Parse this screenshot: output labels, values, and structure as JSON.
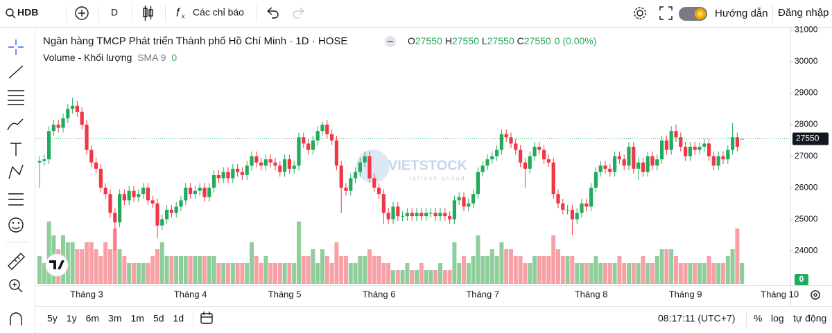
{
  "toolbar": {
    "symbol": "HDB",
    "interval": "D",
    "indicators": "Các chỉ báo",
    "guide": "Hướng dẫn",
    "login": "Đăng nhập"
  },
  "bottom_bar": {
    "ranges": [
      "5y",
      "1y",
      "6m",
      "3m",
      "1m",
      "5d",
      "1d"
    ],
    "time": "08:17:11 (UTC+7)",
    "percent": "%",
    "log": "log",
    "auto": "tự động"
  },
  "watermark": {
    "brand": "VIETSTOCK",
    "tagline": "refresh ahead"
  },
  "chart_data": {
    "type": "candlestick",
    "title": "Ngân hàng TMCP Phát triển Thành phố Hồ Chí Minh · 1D · HOSE",
    "ohlc_prefixes": [
      "O",
      "H",
      "L",
      "C"
    ],
    "change": "0 (0.00%)",
    "volume_legend": {
      "name": "Volume - Khối lượng",
      "sma": "SMA 9",
      "value": 0
    },
    "up_color": "#22ab5c",
    "down_color": "#f23645",
    "volume_up_color": "#8fce9b",
    "volume_down_color": "#f7a1a6",
    "ylim": [
      22950,
      31120
    ],
    "yticks": [
      24000,
      25000,
      26000,
      27000,
      28000,
      29000,
      30000,
      31000
    ],
    "grid": false,
    "volume_ylim": [
      0,
      10
    ],
    "future_ticks": [
      "Tháng 10"
    ],
    "categories": [
      null,
      null,
      null,
      null,
      null,
      null,
      null,
      null,
      null,
      null,
      "Tháng 3",
      null,
      null,
      null,
      null,
      null,
      null,
      null,
      null,
      null,
      null,
      null,
      null,
      null,
      null,
      null,
      null,
      null,
      null,
      null,
      null,
      null,
      "Tháng 4",
      null,
      null,
      null,
      null,
      null,
      null,
      null,
      null,
      null,
      null,
      null,
      null,
      null,
      null,
      null,
      null,
      null,
      null,
      null,
      "Tháng 5",
      null,
      null,
      null,
      null,
      null,
      null,
      null,
      null,
      null,
      null,
      null,
      null,
      null,
      null,
      null,
      null,
      null,
      null,
      null,
      "Tháng 6",
      null,
      null,
      null,
      null,
      null,
      null,
      null,
      null,
      null,
      null,
      null,
      null,
      null,
      null,
      null,
      null,
      null,
      null,
      null,
      null,
      null,
      "Tháng 7",
      null,
      null,
      null,
      null,
      null,
      null,
      null,
      null,
      null,
      null,
      null,
      null,
      null,
      null,
      null,
      null,
      null,
      null,
      null,
      null,
      null,
      null,
      "Tháng 8",
      null,
      null,
      null,
      null,
      null,
      null,
      null,
      null,
      null,
      null,
      null,
      null,
      null,
      null,
      null,
      null,
      null,
      null,
      null,
      "Tháng 9",
      null,
      null,
      null,
      null,
      null,
      null,
      null,
      null,
      null,
      null,
      null,
      null
    ],
    "open": [
      26800,
      26850,
      26900,
      27800,
      28000,
      27900,
      28200,
      28500,
      28600,
      28400,
      28000,
      27200,
      26800,
      26600,
      26000,
      25800,
      25200,
      24900,
      25800,
      25600,
      25900,
      25700,
      25800,
      26000,
      25600,
      25500,
      24800,
      25000,
      25300,
      25200,
      25400,
      25600,
      26000,
      25800,
      25900,
      26000,
      25700,
      26000,
      26400,
      26300,
      26500,
      26300,
      26600,
      26500,
      26400,
      26700,
      27000,
      26800,
      26700,
      26900,
      26800,
      26700,
      26500,
      26900,
      26600,
      26700,
      27600,
      27400,
      27200,
      27500,
      27800,
      28000,
      27700,
      27500,
      26700,
      26000,
      25900,
      26300,
      26500,
      26800,
      27000,
      26300,
      26000,
      25800,
      25200,
      25000,
      25400,
      25100,
      25100,
      25200,
      25100,
      25200,
      25100,
      25200,
      25200,
      25100,
      25200,
      25100,
      25000,
      25600,
      25700,
      25400,
      25500,
      25800,
      26500,
      26700,
      26900,
      27000,
      27200,
      27700,
      27600,
      27400,
      27200,
      26800,
      26600,
      27000,
      27300,
      27200,
      26900,
      26800,
      25800,
      25500,
      25300,
      25300,
      25000,
      25200,
      25500,
      25400,
      26000,
      26500,
      26700,
      26600,
      26500,
      27000,
      26900,
      26700,
      27300,
      26600,
      26800,
      26500,
      27000,
      26700,
      26900,
      27500,
      27200,
      27800,
      27600,
      27300,
      27000,
      27300,
      27200,
      27300,
      27400,
      27000,
      26700,
      27000,
      26900,
      27200,
      27600,
      27550
    ],
    "high": [
      27000,
      27050,
      27950,
      28150,
      28150,
      28350,
      28650,
      28850,
      28750,
      28550,
      28150,
      27350,
      26950,
      26750,
      26150,
      25950,
      25350,
      25950,
      25950,
      26050,
      26050,
      25950,
      26150,
      26150,
      25750,
      25650,
      25150,
      25450,
      25450,
      25550,
      25750,
      26150,
      26150,
      26050,
      26150,
      26150,
      26150,
      26550,
      26550,
      26650,
      26650,
      26750,
      26750,
      26650,
      26850,
      27150,
      27150,
      26950,
      27050,
      27050,
      26950,
      26850,
      27050,
      27050,
      26850,
      27750,
      27750,
      27550,
      27650,
      27950,
      28100,
      28150,
      27850,
      27650,
      26850,
      26150,
      26450,
      26650,
      26950,
      27150,
      27150,
      26450,
      26150,
      25950,
      25350,
      25550,
      25550,
      25250,
      25350,
      25350,
      25350,
      25350,
      25350,
      25350,
      25350,
      25350,
      25350,
      25250,
      25750,
      25850,
      25850,
      25650,
      25950,
      26650,
      26850,
      27050,
      27150,
      27350,
      27850,
      27850,
      27750,
      27550,
      27350,
      26950,
      27150,
      27450,
      27450,
      27350,
      27050,
      26950,
      25950,
      25650,
      25450,
      25450,
      25350,
      25650,
      25650,
      26150,
      26650,
      26850,
      26850,
      26750,
      27150,
      27150,
      27050,
      27450,
      27450,
      26950,
      26950,
      27150,
      27150,
      27050,
      27650,
      27650,
      27950,
      28000,
      27750,
      27450,
      27450,
      27450,
      27450,
      27550,
      27550,
      27150,
      27150,
      27150,
      27350,
      28050,
      27750,
      27550
    ],
    "low": [
      26000,
      26700,
      26750,
      27650,
      27750,
      27750,
      28050,
      28350,
      28250,
      27850,
      27050,
      26650,
      26450,
      25850,
      25650,
      25050,
      24000,
      24750,
      25450,
      25450,
      25550,
      25550,
      25650,
      25450,
      25350,
      24400,
      24650,
      24850,
      25050,
      25050,
      25250,
      25450,
      25650,
      25650,
      25750,
      25550,
      25550,
      25850,
      26150,
      26150,
      26150,
      26150,
      26350,
      26250,
      26250,
      26550,
      26650,
      26550,
      26550,
      26650,
      26550,
      26350,
      26350,
      26450,
      26450,
      26550,
      27250,
      27050,
      27050,
      27350,
      27650,
      27550,
      27350,
      26550,
      25200,
      25750,
      25750,
      26150,
      26350,
      26650,
      26150,
      25850,
      25650,
      24850,
      24850,
      24850,
      24950,
      24950,
      24950,
      24950,
      24950,
      24950,
      24950,
      25050,
      24950,
      24950,
      24950,
      24850,
      24850,
      25450,
      25250,
      25250,
      25350,
      25650,
      26350,
      26550,
      26750,
      26850,
      27050,
      27450,
      27250,
      27050,
      26650,
      26000,
      26450,
      26850,
      27050,
      26750,
      26650,
      25650,
      25350,
      25150,
      25150,
      24500,
      24850,
      25050,
      25250,
      25250,
      25850,
      26350,
      26450,
      26350,
      26350,
      26750,
      26550,
      26550,
      26450,
      26250,
      26350,
      26350,
      26550,
      26550,
      26750,
      27050,
      27050,
      27450,
      27150,
      26850,
      26850,
      27050,
      27050,
      27150,
      26850,
      26550,
      26550,
      26750,
      26750,
      27050,
      27150,
      27550
    ],
    "close": [
      26850,
      26900,
      27800,
      28000,
      27900,
      28200,
      28500,
      28600,
      28400,
      28000,
      27200,
      26800,
      26600,
      26000,
      25800,
      25200,
      24900,
      25800,
      25600,
      25900,
      25700,
      25800,
      26000,
      25600,
      25500,
      24800,
      25000,
      25300,
      25200,
      25400,
      25600,
      26000,
      25800,
      25900,
      26000,
      25700,
      26000,
      26400,
      26300,
      26500,
      26300,
      26600,
      26500,
      26400,
      26700,
      27000,
      26800,
      26700,
      26900,
      26800,
      26700,
      26500,
      26900,
      26600,
      26700,
      27600,
      27400,
      27200,
      27500,
      27800,
      28000,
      27700,
      27500,
      26700,
      26000,
      25900,
      26300,
      26500,
      26800,
      27000,
      26300,
      26000,
      25800,
      25200,
      25000,
      25400,
      25100,
      25100,
      25200,
      25100,
      25200,
      25100,
      25200,
      25200,
      25100,
      25200,
      25100,
      25000,
      25600,
      25700,
      25400,
      25500,
      25800,
      26500,
      26700,
      26900,
      27000,
      27200,
      27700,
      27600,
      27400,
      27200,
      26800,
      26600,
      27000,
      27300,
      27200,
      26900,
      26800,
      25800,
      25500,
      25300,
      25300,
      25000,
      25200,
      25500,
      25400,
      26000,
      26500,
      26700,
      26600,
      26500,
      27000,
      26900,
      26700,
      27300,
      26600,
      26800,
      26500,
      27000,
      26700,
      26900,
      27500,
      27200,
      27800,
      27600,
      27300,
      27000,
      27300,
      27200,
      27300,
      27400,
      27000,
      26700,
      27000,
      26900,
      27200,
      27600,
      27300,
      27550
    ],
    "volume": [
      4,
      3,
      9,
      7,
      5,
      7,
      6,
      6,
      5,
      5,
      6,
      6,
      5,
      4,
      6,
      5,
      8,
      5,
      4,
      3,
      3,
      3,
      3,
      3,
      4,
      5,
      6,
      4,
      4,
      4,
      4,
      4,
      4,
      4,
      4,
      4,
      4,
      4,
      3,
      3,
      3,
      3,
      3,
      3,
      3,
      6,
      4,
      3,
      4,
      3,
      3,
      3,
      3,
      3,
      3,
      9,
      4,
      4,
      5,
      3,
      5,
      4,
      3,
      6,
      4,
      4,
      3,
      3,
      4,
      4,
      5,
      4,
      4,
      3,
      3,
      2,
      2,
      2,
      3,
      2,
      2,
      3,
      2,
      2,
      2,
      3,
      2,
      2,
      6,
      3,
      4,
      3,
      4,
      7,
      4,
      4,
      5,
      4,
      6,
      5,
      5,
      4,
      4,
      3,
      3,
      4,
      4,
      4,
      4,
      7,
      5,
      4,
      4,
      4,
      3,
      3,
      3,
      3,
      4,
      3,
      3,
      3,
      3,
      4,
      3,
      3,
      3,
      3,
      4,
      3,
      3,
      4,
      5,
      5,
      5,
      4,
      3,
      3,
      3,
      3,
      3,
      3,
      4,
      3,
      3,
      3,
      4,
      5,
      8,
      3
    ]
  }
}
